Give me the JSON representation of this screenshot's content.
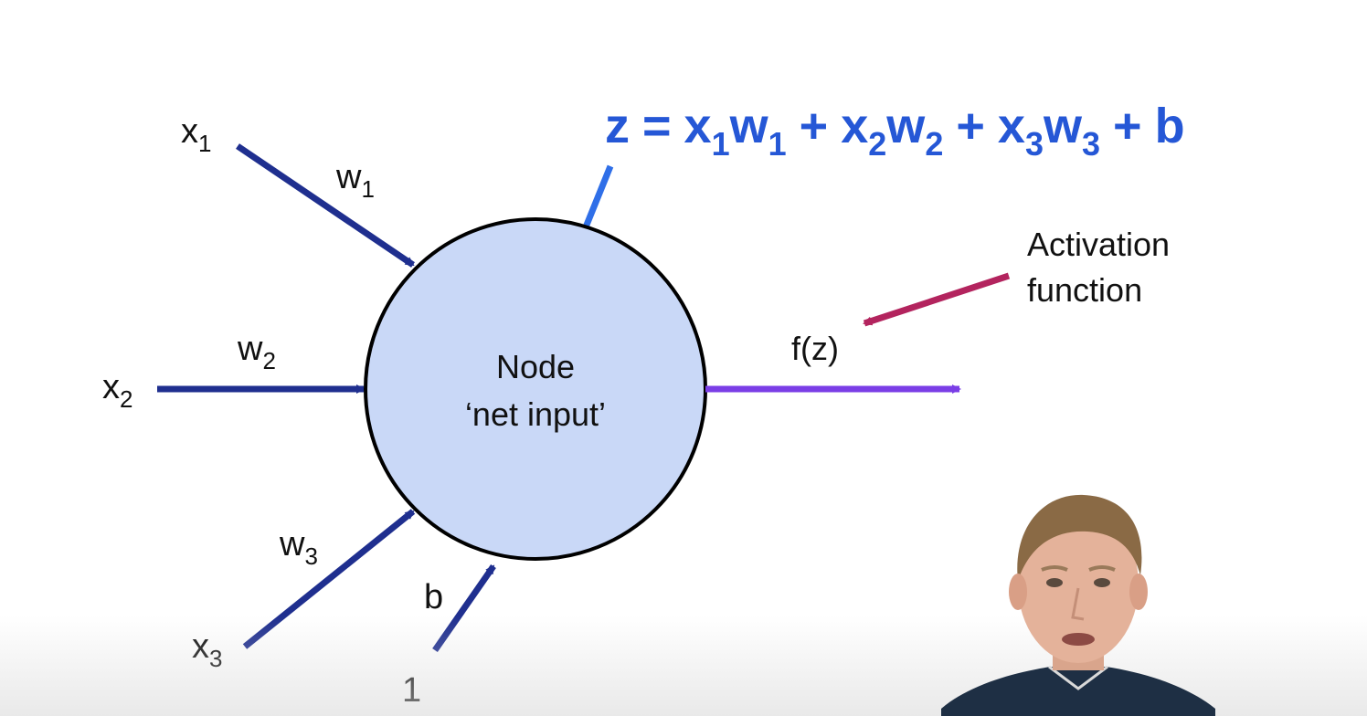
{
  "diagram": {
    "equation": {
      "z": "z",
      "equals": "=",
      "x1": "x",
      "x1_sub": "1",
      "w1": "w",
      "w1_sub": "1",
      "plus1": "+",
      "x2": "x",
      "x2_sub": "2",
      "w2": "w",
      "w2_sub": "2",
      "plus2": "+",
      "x3": "x",
      "x3_sub": "3",
      "w3": "w",
      "w3_sub": "3",
      "plus3": "+",
      "b": "b",
      "color": "#2557d6"
    },
    "inputs": [
      {
        "symbol": "x",
        "sub": "1",
        "weight": "w",
        "weight_sub": "1"
      },
      {
        "symbol": "x",
        "sub": "2",
        "weight": "w",
        "weight_sub": "2"
      },
      {
        "symbol": "x",
        "sub": "3",
        "weight": "w",
        "weight_sub": "3"
      }
    ],
    "bias": {
      "label": "b",
      "input": "1"
    },
    "node": {
      "line1": "Node",
      "line2": "‘net input’",
      "fill": "#c9d8f7"
    },
    "output": {
      "label": "f(z)",
      "color": "#7a3ee6"
    },
    "annotation": {
      "line1": "Activation",
      "line2": "function",
      "arrow_color": "#b3245e"
    },
    "arrow_color": "#1f2f8f",
    "pointer_color": "#2f6fe8"
  }
}
